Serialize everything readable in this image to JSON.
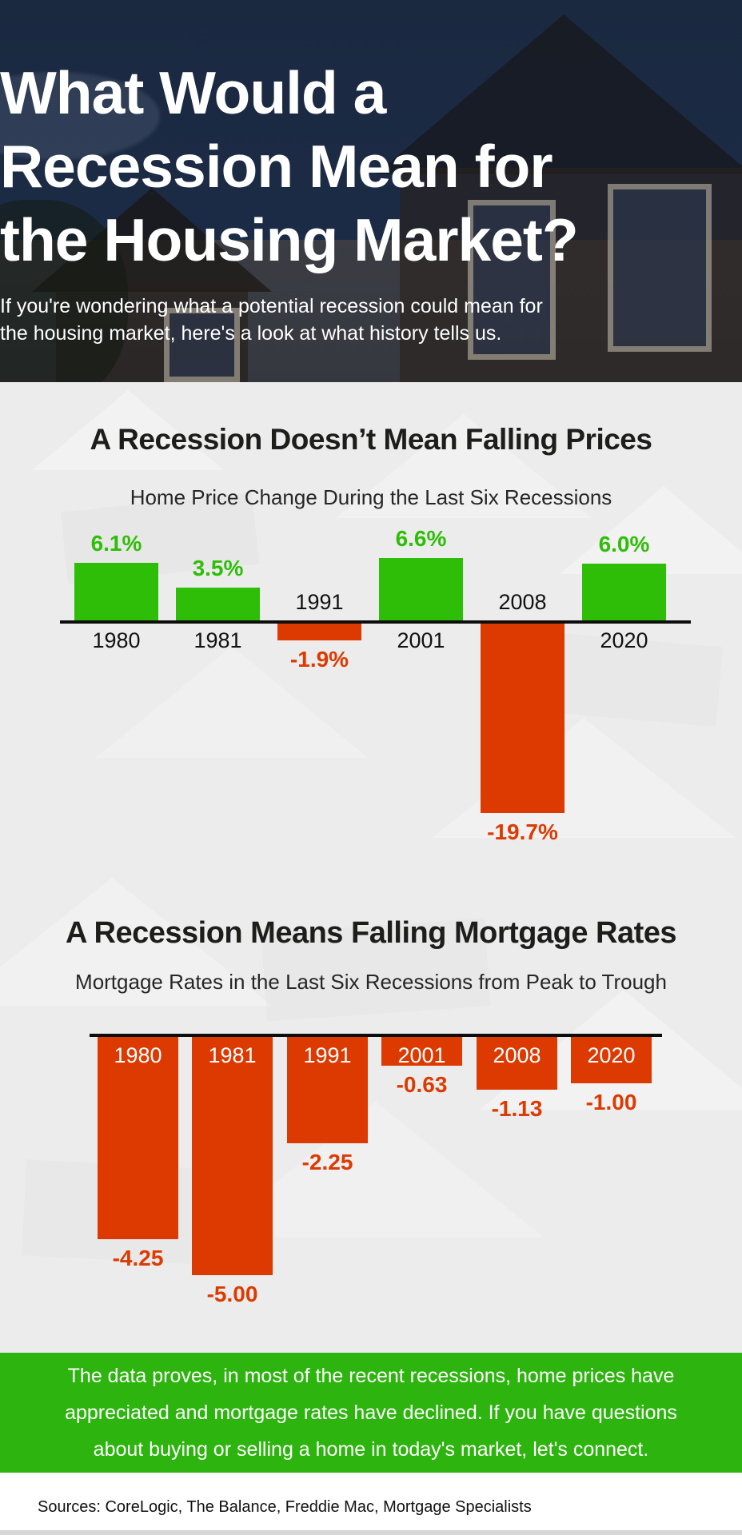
{
  "hero": {
    "title": "What Would a\nRecession Mean for\nthe Housing Market?",
    "subtitle": "If you're wondering what a potential recession could mean for\nthe housing market, here's a look at what history tells us."
  },
  "summary": {
    "text": "The data proves, in most of the recent recessions, home prices have\nappreciated and mortgage rates have declined. If you have questions\nabout buying or selling a home in today's market, let's connect."
  },
  "footer": {
    "sources": "Sources: CoreLogic, The Balance, Freddie Mac, Mortgage Specialists"
  },
  "colors": {
    "positive_green": "#2fbe08",
    "negative_red": "#dd3a02",
    "summary_band_green": "#2db40e",
    "hero_navy": "#1c2b45",
    "axis_black": "#0d0d0d",
    "background_gray": "#ececec"
  },
  "chart_data": [
    {
      "type": "bar",
      "title": "A Recession Doesn’t Mean Falling Prices",
      "subtitle": "Home Price Change During the Last Six Recessions",
      "categories": [
        "1980",
        "1981",
        "1991",
        "2001",
        "2008",
        "2020"
      ],
      "values": [
        6.1,
        3.5,
        -1.9,
        6.6,
        -19.7,
        6.0
      ],
      "value_labels": [
        "6.1%",
        "3.5%",
        "-1.9%",
        "6.6%",
        "-19.7%",
        "6.0%"
      ],
      "positive_color": "#2fbe08",
      "negative_color": "#dd3a02",
      "baseline": 0,
      "ylim": [
        -19.7,
        6.6
      ],
      "grid": false,
      "legend": false
    },
    {
      "type": "bar",
      "title": "A Recession Means Falling Mortgage Rates",
      "subtitle": "Mortgage Rates in the Last Six Recessions from Peak to Trough",
      "categories": [
        "1980",
        "1981",
        "1991",
        "2001",
        "2008",
        "2020"
      ],
      "values": [
        -4.25,
        -5.0,
        -2.25,
        -0.63,
        -1.13,
        -1.0
      ],
      "value_labels": [
        "-4.25",
        "-5.00",
        "-2.25",
        "-0.63",
        "-1.13",
        "-1.00"
      ],
      "positive_color": "#dd3a02",
      "negative_color": "#dd3a02",
      "baseline": 0,
      "ylim": [
        -5.0,
        0
      ],
      "grid": false,
      "legend": false
    }
  ]
}
